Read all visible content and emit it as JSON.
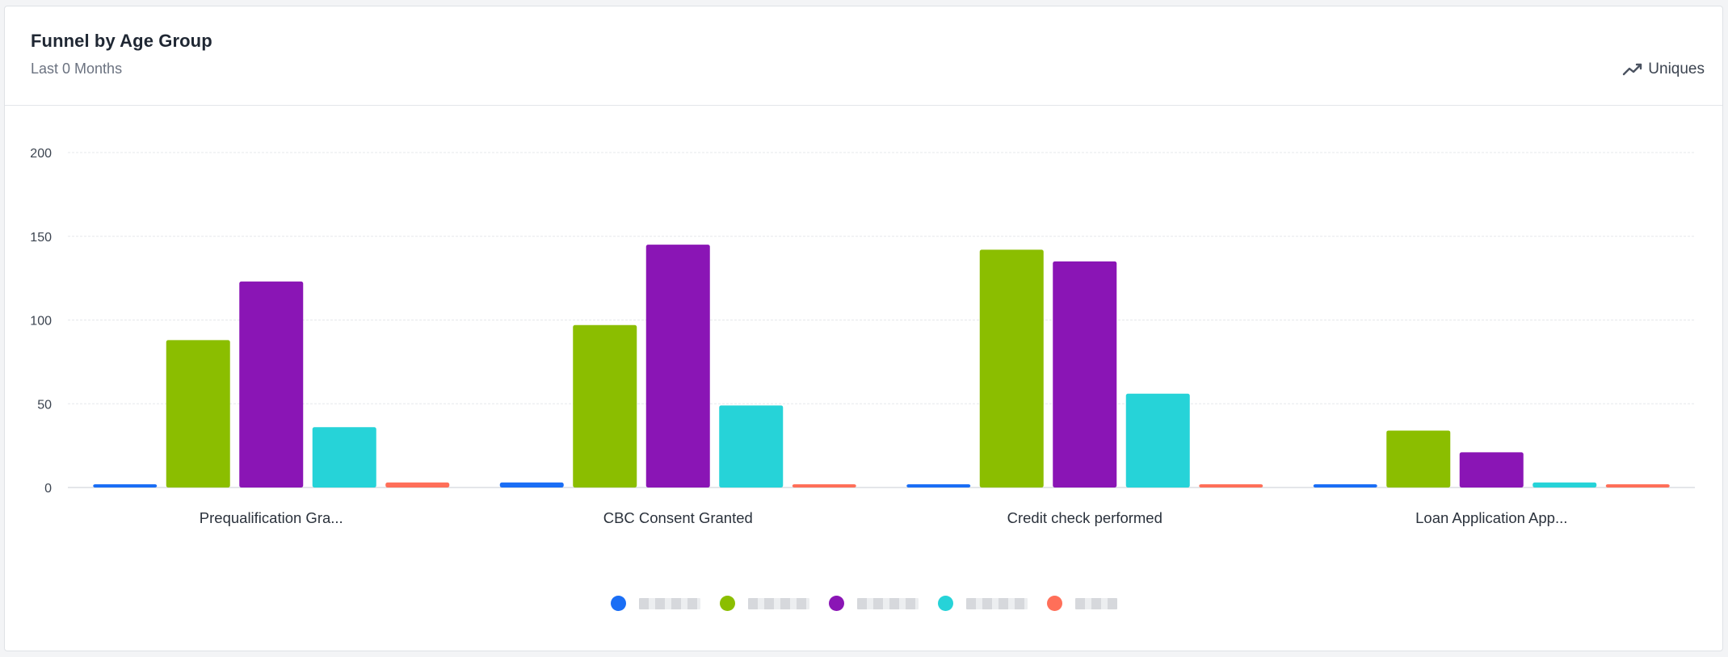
{
  "header": {
    "title": "Funnel by Age Group",
    "subtitle": "Last 0 Months",
    "metric_label": "Uniques",
    "metric_icon": "line-chart-icon"
  },
  "chart_data": {
    "type": "bar",
    "categories": [
      "Prequalification Gra...",
      "CBC Consent Granted",
      "Credit check performed",
      "Loan Application App..."
    ],
    "ylim": [
      0,
      200
    ],
    "yticks": [
      0,
      50,
      100,
      150,
      200
    ],
    "grid": true,
    "legend_position": "bottom",
    "series": [
      {
        "color": "#1a6ef5",
        "values": [
          1,
          3,
          1,
          1
        ]
      },
      {
        "color": "#8bbe00",
        "values": [
          88,
          97,
          142,
          34
        ]
      },
      {
        "color": "#8a15b5",
        "values": [
          123,
          145,
          135,
          21
        ]
      },
      {
        "color": "#26d3d8",
        "values": [
          36,
          49,
          56,
          3
        ]
      },
      {
        "color": "#ff6f59",
        "values": [
          3,
          1,
          1,
          1
        ]
      }
    ]
  }
}
